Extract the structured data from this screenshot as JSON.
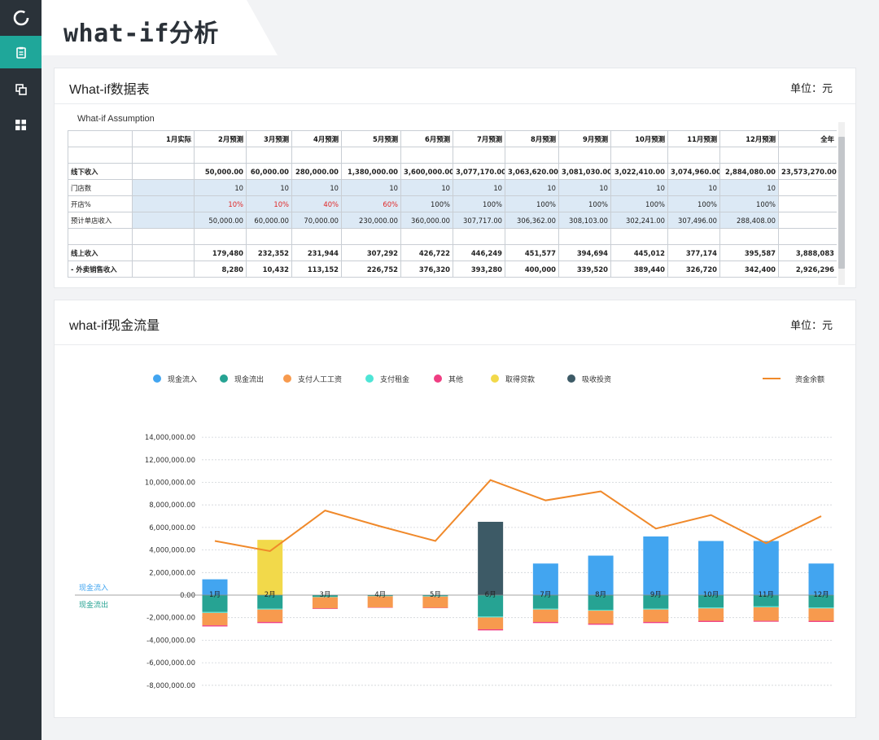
{
  "page": {
    "title": "what-if分析"
  },
  "sidebar": {
    "items": [
      {
        "icon": "clipboard-icon",
        "active": true
      },
      {
        "icon": "copy-icon",
        "active": false
      },
      {
        "icon": "grid-icon",
        "active": false
      }
    ]
  },
  "table_card": {
    "title": "What-if数据表",
    "unit": "单位：元",
    "section": "What-if Assumption",
    "headers": [
      "",
      "1月实际",
      "2月预测",
      "3月预测",
      "4月预测",
      "5月预测",
      "6月预测",
      "7月预测",
      "8月预测",
      "9月预测",
      "10月预测",
      "11月预测",
      "12月预测",
      "全年"
    ],
    "rows": [
      {
        "label": "",
        "cells": [
          "",
          "",
          "",
          "",
          "",
          "",
          "",
          "",
          "",
          "",
          "",
          "",
          ""
        ]
      },
      {
        "label": "线下收入",
        "bold": true,
        "cells": [
          "",
          "50,000.00",
          "60,000.00",
          "280,000.00",
          "1,380,000.00",
          "3,600,000.00",
          "3,077,170.00",
          "3,063,620.00",
          "3,081,030.00",
          "3,022,410.00",
          "3,074,960.00",
          "2,884,080.00",
          "23,573,270.00"
        ]
      },
      {
        "label": "门店数",
        "input": true,
        "cells": [
          "",
          "10",
          "10",
          "10",
          "10",
          "10",
          "10",
          "10",
          "10",
          "10",
          "10",
          "10",
          ""
        ]
      },
      {
        "label": "开店%",
        "input": true,
        "cells": [
          "",
          "10%",
          "10%",
          "40%",
          "60%",
          "100%",
          "100%",
          "100%",
          "100%",
          "100%",
          "100%",
          "100%",
          ""
        ],
        "red_cells": [
          1,
          2,
          3,
          4
        ]
      },
      {
        "label": "预计单店收入",
        "input": true,
        "cells": [
          "",
          "50,000.00",
          "60,000.00",
          "70,000.00",
          "230,000.00",
          "360,000.00",
          "307,717.00",
          "306,362.00",
          "308,103.00",
          "302,241.00",
          "307,496.00",
          "288,408.00",
          ""
        ]
      },
      {
        "label": "",
        "cells": [
          "",
          "",
          "",
          "",
          "",
          "",
          "",
          "",
          "",
          "",
          "",
          "",
          ""
        ]
      },
      {
        "label": "线上收入",
        "bold": true,
        "cells": [
          "",
          "179,480",
          "232,352",
          "231,944",
          "307,292",
          "426,722",
          "446,249",
          "451,577",
          "394,694",
          "445,012",
          "377,174",
          "395,587",
          "3,888,083"
        ]
      },
      {
        "label": " - 外卖销售收入",
        "bold": true,
        "cells": [
          "",
          "8,280",
          "10,432",
          "113,152",
          "226,752",
          "376,320",
          "393,280",
          "400,000",
          "339,520",
          "389,440",
          "326,720",
          "342,400",
          "2,926,296"
        ]
      }
    ]
  },
  "chart_card": {
    "title": "what-if现金流量",
    "unit": "单位：元"
  },
  "chart_data": {
    "type": "bar",
    "categories": [
      "1月",
      "2月",
      "3月",
      "4月",
      "5月",
      "6月",
      "7月",
      "8月",
      "9月",
      "10月",
      "11月",
      "12月"
    ],
    "series": [
      {
        "name": "现金流入",
        "color": "#42a5f0",
        "values": [
          1400000,
          0,
          0,
          0,
          0,
          0,
          2800000,
          3500000,
          5200000,
          4800000,
          4800000,
          2800000
        ]
      },
      {
        "name": "取得贷款",
        "color": "#f2d94a",
        "values": [
          0,
          4900000,
          0,
          0,
          0,
          0,
          0,
          0,
          0,
          0,
          0,
          0
        ]
      },
      {
        "name": "吸收投资",
        "color": "#3d5a66",
        "values": [
          0,
          0,
          0,
          0,
          0,
          6500000,
          0,
          0,
          0,
          0,
          0,
          0
        ]
      },
      {
        "name": "现金流出",
        "color": "#26a393",
        "values": [
          -1500000,
          -1200000,
          -150000,
          -80000,
          -100000,
          -1900000,
          -1200000,
          -1300000,
          -1200000,
          -1100000,
          -1000000,
          -1100000
        ]
      },
      {
        "name": "支付租金",
        "color": "#4ee5d6",
        "values": [
          -80000,
          -80000,
          -30000,
          -20000,
          -30000,
          -80000,
          -80000,
          -80000,
          -80000,
          -80000,
          -80000,
          -80000
        ]
      },
      {
        "name": "支付人工工资",
        "color": "#f79a4e",
        "values": [
          -1100000,
          -1100000,
          -1000000,
          -1000000,
          -1000000,
          -1050000,
          -1100000,
          -1150000,
          -1100000,
          -1100000,
          -1200000,
          -1100000
        ]
      },
      {
        "name": "其他",
        "color": "#ef3e82",
        "values": [
          -100000,
          -100000,
          -50000,
          -30000,
          -30000,
          -100000,
          -100000,
          -100000,
          -100000,
          -100000,
          -80000,
          -100000
        ]
      }
    ],
    "line": {
      "name": "资金余额",
      "color": "#f0892a",
      "values": [
        4800000,
        3900000,
        7500000,
        6100000,
        4800000,
        10200000,
        8400000,
        9200000,
        5900000,
        7100000,
        4600000,
        7000000
      ]
    },
    "legend_order": [
      {
        "name": "现金流入",
        "color": "#42a5f0"
      },
      {
        "name": "现金流出",
        "color": "#26a393"
      },
      {
        "name": "支付人工工资",
        "color": "#f79a4e"
      },
      {
        "name": "支付租金",
        "color": "#4ee5d6"
      },
      {
        "name": "其他",
        "color": "#ef3e82"
      },
      {
        "name": "取得贷款",
        "color": "#f2d94a"
      },
      {
        "name": "吸收投资",
        "color": "#3d5a66"
      }
    ],
    "yticks": [
      "14,000,000.00",
      "12,000,000.00",
      "10,000,000.00",
      "8,000,000.00",
      "6,000,000.00",
      "4,000,000.00",
      "2,000,000.00",
      "0.00",
      "-2,000,000.00",
      "-4,000,000.00",
      "-6,000,000.00",
      "-8,000,000.00"
    ],
    "ylim": [
      -8000000,
      14000000
    ],
    "inflow_label": "现金流入",
    "outflow_label": "现金流出",
    "grid": true,
    "legend_position": "top"
  }
}
